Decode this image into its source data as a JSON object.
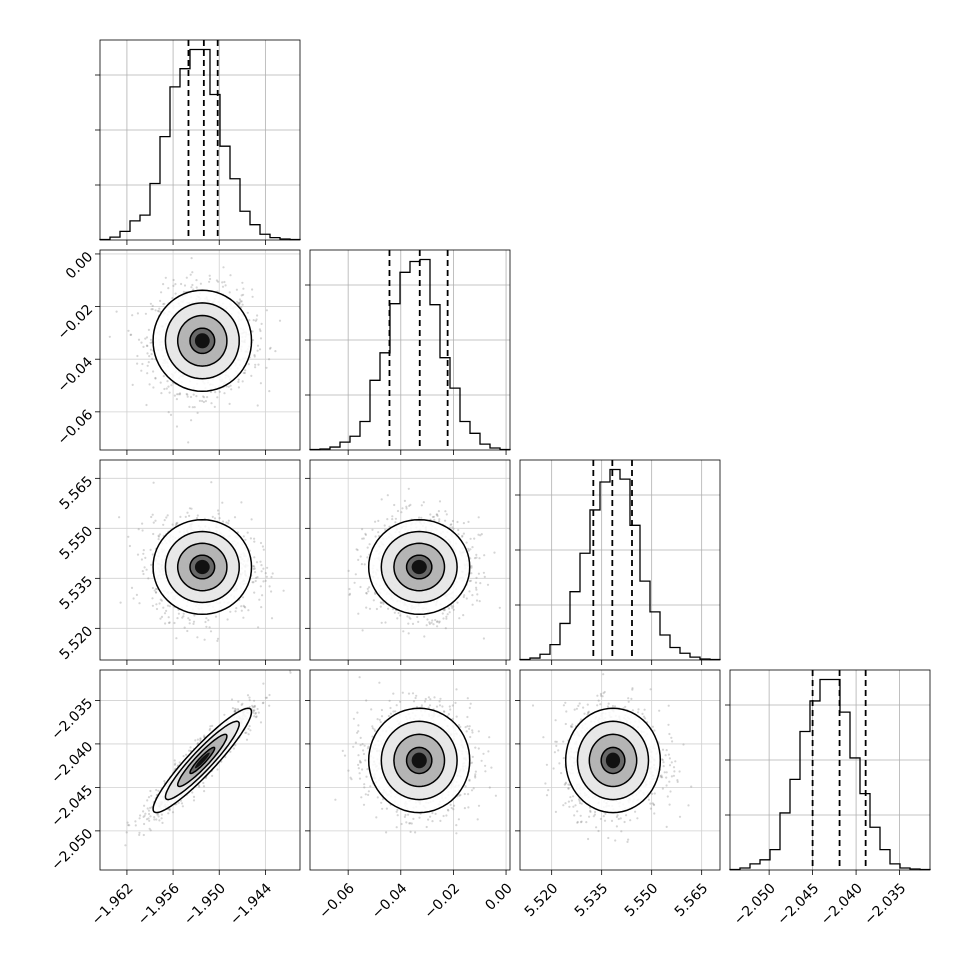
{
  "chart_data": {
    "type": "corner",
    "n_params": 4,
    "grid": true,
    "quantile_lines": "dashed",
    "parameters": [
      {
        "index": 0,
        "range": [
          -1.9655,
          -1.9395
        ],
        "ticks": [
          -1.962,
          -1.956,
          -1.95,
          -1.944
        ],
        "tick_labels": [
          "−1.962",
          "−1.956",
          "−1.950",
          "−1.944"
        ],
        "quantiles": [
          -1.954,
          -1.952,
          -1.9502
        ],
        "hist_bins": [
          -1.9655,
          -1.9642,
          -1.9629,
          -1.9616,
          -1.9603,
          -1.959,
          -1.9577,
          -1.9564,
          -1.9551,
          -1.9538,
          -1.9525,
          -1.9512,
          -1.9499,
          -1.9486,
          -1.9473,
          -1.946,
          -1.9447,
          -1.9434,
          -1.9421,
          -1.9408,
          -1.9395
        ],
        "hist_counts": [
          1,
          6,
          18,
          40,
          52,
          118,
          216,
          320,
          358,
          398,
          398,
          304,
          196,
          128,
          60,
          32,
          12,
          5,
          2,
          1
        ]
      },
      {
        "index": 1,
        "range": [
          -0.0745,
          0.0015
        ],
        "ticks": [
          -0.06,
          -0.04,
          -0.02,
          0.0
        ],
        "tick_labels": [
          "−0.06",
          "−0.04",
          "−0.02",
          "0.00"
        ],
        "quantiles": [
          -0.0443,
          -0.0328,
          -0.0222
        ],
        "hist_bins": [
          -0.0745,
          -0.0707,
          -0.0669,
          -0.0631,
          -0.0593,
          -0.0555,
          -0.0517,
          -0.0479,
          -0.0441,
          -0.0403,
          -0.0365,
          -0.0327,
          -0.0289,
          -0.0251,
          -0.0213,
          -0.0175,
          -0.0137,
          -0.0099,
          -0.0061,
          -0.0023,
          0.0015
        ],
        "hist_counts": [
          1,
          2,
          6,
          16,
          28,
          58,
          142,
          198,
          298,
          362,
          384,
          388,
          296,
          188,
          126,
          58,
          34,
          12,
          4,
          1
        ]
      },
      {
        "index": 2,
        "range": [
          5.5105,
          5.5705
        ],
        "ticks": [
          5.52,
          5.535,
          5.55,
          5.565
        ],
        "tick_labels": [
          "5.520",
          "5.535",
          "5.550",
          "5.565"
        ],
        "quantiles": [
          5.5325,
          5.5382,
          5.5441
        ],
        "hist_bins": [
          5.5105,
          5.5135,
          5.5165,
          5.5195,
          5.5225,
          5.5255,
          5.5285,
          5.5315,
          5.5345,
          5.5375,
          5.5405,
          5.5435,
          5.5465,
          5.5495,
          5.5525,
          5.5555,
          5.5585,
          5.5615,
          5.5645,
          5.5675,
          5.5705
        ],
        "hist_counts": [
          1,
          4,
          12,
          32,
          76,
          142,
          222,
          312,
          370,
          396,
          376,
          280,
          164,
          100,
          52,
          26,
          14,
          6,
          2,
          1
        ]
      },
      {
        "index": 3,
        "range": [
          -2.0545,
          -2.0315
        ],
        "ticks": [
          -2.05,
          -2.045,
          -2.04,
          -2.035
        ],
        "tick_labels": [
          "−2.050",
          "−2.045",
          "−2.040",
          "−2.035"
        ],
        "quantiles": [
          -2.045,
          -2.0419,
          -2.0389
        ],
        "hist_bins": [
          -2.0545,
          -2.05335,
          -2.0522,
          -2.05105,
          -2.0499,
          -2.04875,
          -2.0476,
          -2.04645,
          -2.0453,
          -2.04415,
          -2.043,
          -2.04185,
          -2.0407,
          -2.03955,
          -2.0384,
          -2.03725,
          -2.0361,
          -2.03495,
          -2.0338,
          -2.03265,
          -2.0315
        ],
        "hist_counts": [
          1,
          4,
          12,
          20,
          40,
          112,
          178,
          272,
          332,
          374,
          374,
          310,
          220,
          150,
          84,
          40,
          12,
          4,
          2,
          1
        ]
      }
    ],
    "pairs": [
      {
        "x": 0,
        "y": 1,
        "center": [
          -1.9522,
          -0.033
        ],
        "sigma": [
          0.0032,
          0.0096
        ],
        "corr": 0.0
      },
      {
        "x": 0,
        "y": 2,
        "center": [
          -1.9522,
          5.5384
        ],
        "sigma": [
          0.0032,
          0.0071
        ],
        "corr": 0.0
      },
      {
        "x": 1,
        "y": 2,
        "center": [
          -0.033,
          5.5384
        ],
        "sigma": [
          0.0096,
          0.0071
        ],
        "corr": 0.0
      },
      {
        "x": 0,
        "y": 3,
        "center": [
          -1.9522,
          -2.0419
        ],
        "sigma": [
          0.0032,
          0.003
        ],
        "corr": 0.93
      },
      {
        "x": 1,
        "y": 3,
        "center": [
          -0.033,
          -2.0419
        ],
        "sigma": [
          0.0096,
          0.003
        ],
        "corr": 0.0
      },
      {
        "x": 2,
        "y": 3,
        "center": [
          5.5384,
          -2.0419
        ],
        "sigma": [
          0.0071,
          0.003
        ],
        "corr": 0.0
      }
    ],
    "contour_levels_sigma": [
      0.5,
      1.0,
      1.5,
      2.0
    ]
  }
}
